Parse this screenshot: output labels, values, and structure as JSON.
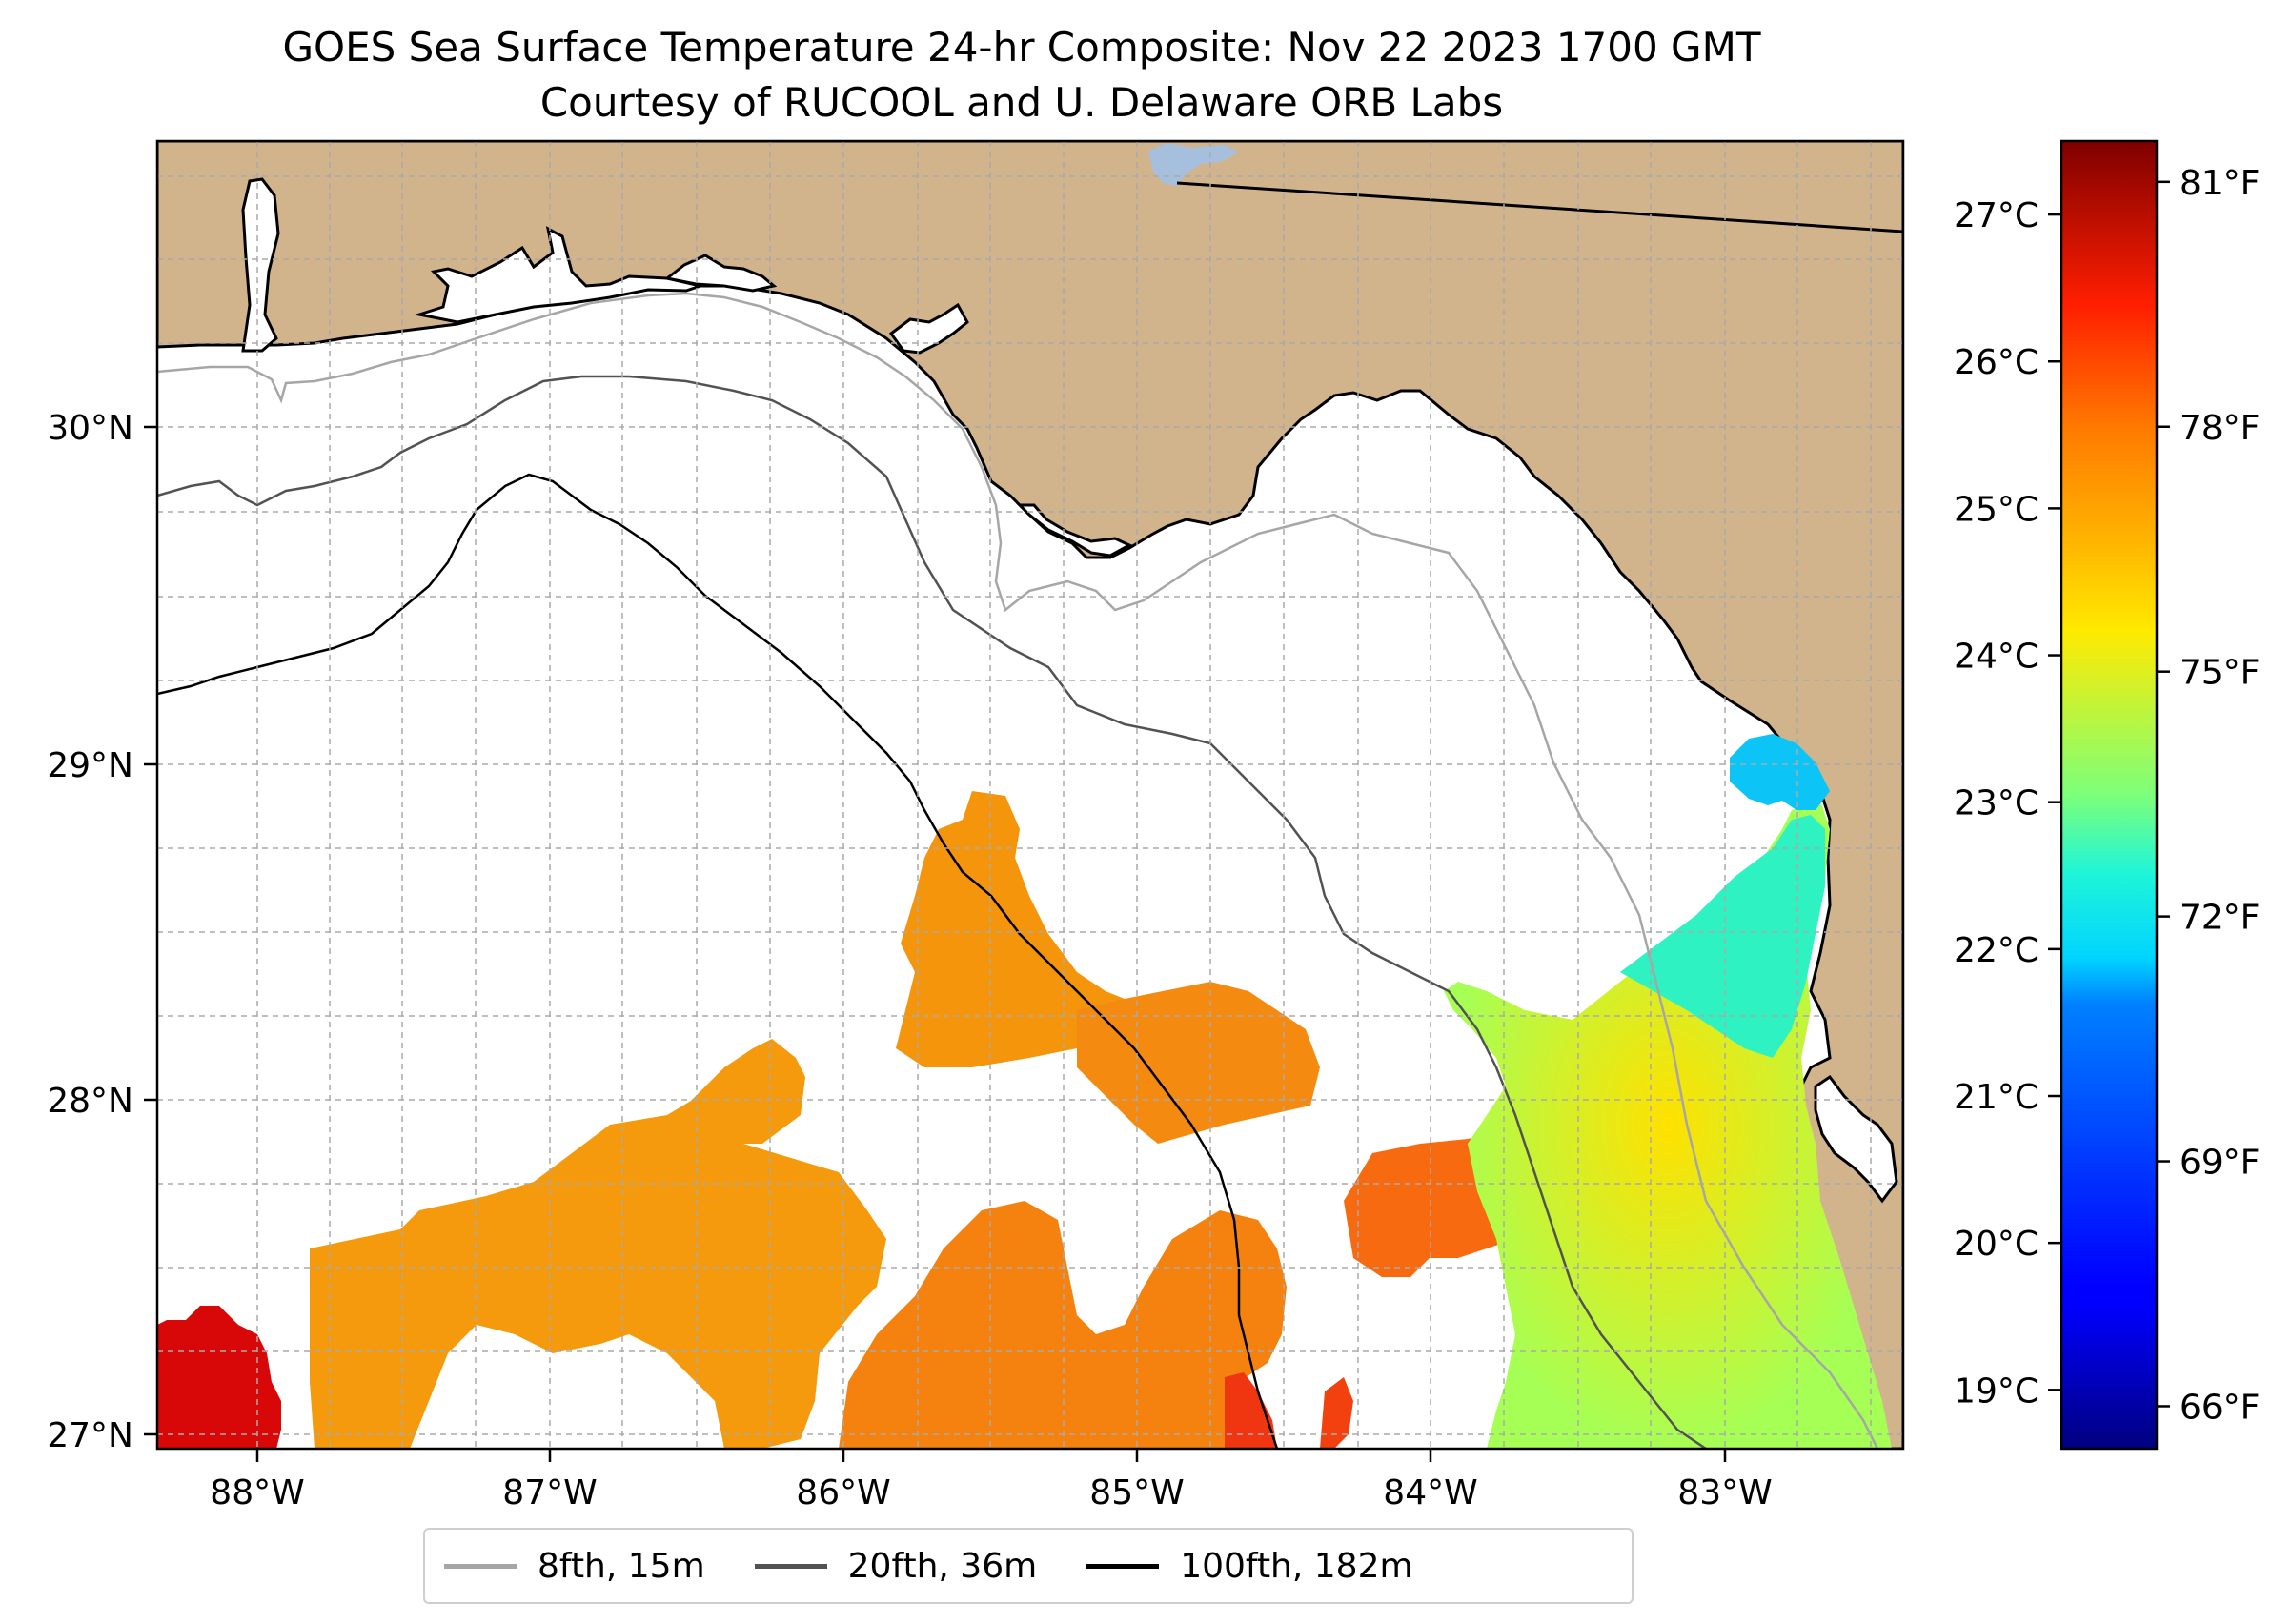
{
  "title": {
    "line1": "GOES Sea Surface Temperature 24-hr Composite: Nov 22 2023 1700 GMT",
    "line2": "Courtesy of RUCOOL and U. Delaware ORB Labs"
  },
  "map": {
    "longitude_ticks": [
      "88°W",
      "87°W",
      "86°W",
      "85°W",
      "84°W",
      "83°W"
    ],
    "latitude_ticks": [
      "30°N",
      "29°N",
      "28°N",
      "27°N"
    ],
    "lon_range": [
      -88.35,
      -82.4
    ],
    "lat_range": [
      26.93,
      30.85
    ],
    "land_color": "#d2b48c",
    "lake_color": "#a5bfdd"
  },
  "chart_data": {
    "type": "heatmap",
    "title": "GOES Sea Surface Temperature 24-hr Composite: Nov 22 2023 1700 GMT",
    "colormap": "jet",
    "celsius_range": [
      18.6,
      27.5
    ],
    "celsius_ticks": [
      "27°C",
      "26°C",
      "25°C",
      "24°C",
      "23°C",
      "22°C",
      "21°C",
      "20°C",
      "19°C"
    ],
    "celsius_tick_values": [
      27,
      26,
      25,
      24,
      23,
      22,
      21,
      20,
      19
    ],
    "fahrenheit_ticks": [
      "81°F",
      "78°F",
      "75°F",
      "72°F",
      "69°F",
      "66°F"
    ],
    "fahrenheit_tick_values": [
      81,
      78,
      75,
      72,
      69,
      66
    ]
  },
  "legend": [
    {
      "label": "8fth, 15m",
      "color": "#a6a6a6"
    },
    {
      "label": "20fth, 36m",
      "color": "#525252"
    },
    {
      "label": "100fth, 182m",
      "color": "#000000"
    }
  ]
}
